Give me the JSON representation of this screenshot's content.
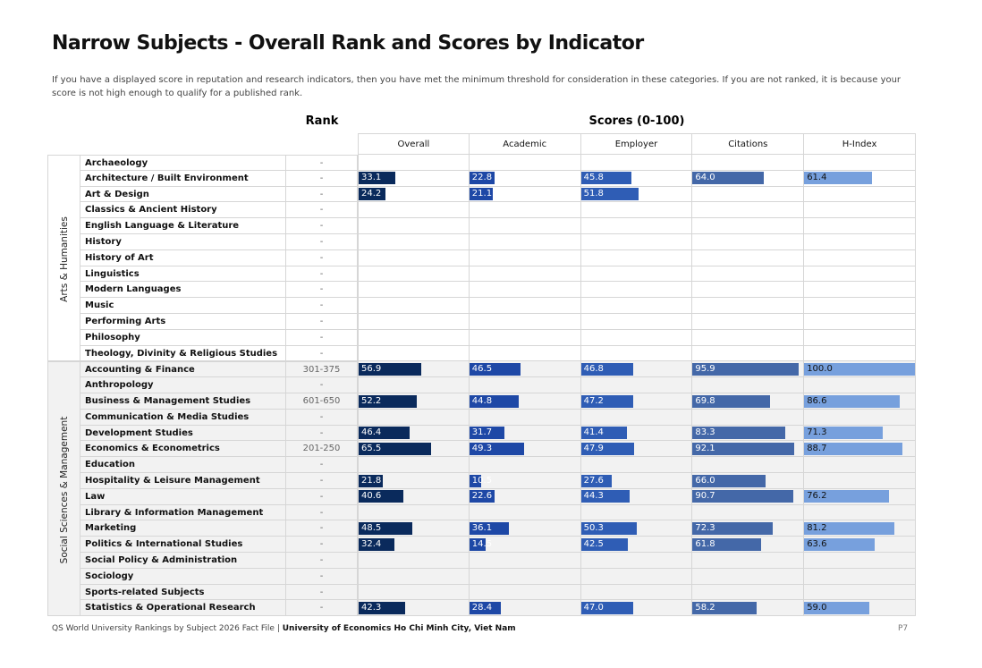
{
  "header": {
    "title": "Narrow Subjects - Overall Rank and Scores by Indicator",
    "subtitle": "If you have a displayed score in reputation and research indicators, then you have met the minimum threshold for consideration in these categories. If you are not ranked, it is because your score is not high enough to qualify for a published rank."
  },
  "table": {
    "rank_header": "Rank",
    "scores_header": "Scores (0-100)",
    "score_range": [
      0,
      100
    ],
    "columns": [
      "Overall",
      "Academic",
      "Employer",
      "Citations",
      "H-Index"
    ],
    "colors": [
      "#0a2a5c",
      "#1e48a6",
      "#2f5db5",
      "#4468a8",
      "#77a0dd"
    ],
    "groups": [
      {
        "name": "Arts & Humanities",
        "rows": [
          {
            "subject": "Archaeology",
            "rank": "-",
            "scores": [
              null,
              null,
              null,
              null,
              null
            ]
          },
          {
            "subject": "Architecture / Built Environment",
            "rank": "-",
            "scores": [
              "33.1",
              "22.8",
              "45.8",
              "64.0",
              "61.4"
            ]
          },
          {
            "subject": "Art & Design",
            "rank": "-",
            "scores": [
              "24.2",
              "21.1",
              "51.8",
              null,
              null
            ]
          },
          {
            "subject": "Classics & Ancient History",
            "rank": "-",
            "scores": [
              null,
              null,
              null,
              null,
              null
            ]
          },
          {
            "subject": "English Language & Literature",
            "rank": "-",
            "scores": [
              null,
              null,
              null,
              null,
              null
            ]
          },
          {
            "subject": "History",
            "rank": "-",
            "scores": [
              null,
              null,
              null,
              null,
              null
            ]
          },
          {
            "subject": "History of Art",
            "rank": "-",
            "scores": [
              null,
              null,
              null,
              null,
              null
            ]
          },
          {
            "subject": "Linguistics",
            "rank": "-",
            "scores": [
              null,
              null,
              null,
              null,
              null
            ]
          },
          {
            "subject": "Modern Languages",
            "rank": "-",
            "scores": [
              null,
              null,
              null,
              null,
              null
            ]
          },
          {
            "subject": "Music",
            "rank": "-",
            "scores": [
              null,
              null,
              null,
              null,
              null
            ]
          },
          {
            "subject": "Performing Arts",
            "rank": "-",
            "scores": [
              null,
              null,
              null,
              null,
              null
            ]
          },
          {
            "subject": "Philosophy",
            "rank": "-",
            "scores": [
              null,
              null,
              null,
              null,
              null
            ]
          },
          {
            "subject": "Theology, Divinity & Religious Studies",
            "rank": "-",
            "scores": [
              null,
              null,
              null,
              null,
              null
            ]
          }
        ]
      },
      {
        "name": "Social Sciences & Management",
        "rows": [
          {
            "subject": "Accounting & Finance",
            "rank": "301-375",
            "scores": [
              "56.9",
              "46.5",
              "46.8",
              "95.9",
              "100.0"
            ]
          },
          {
            "subject": "Anthropology",
            "rank": "-",
            "scores": [
              null,
              null,
              null,
              null,
              null
            ]
          },
          {
            "subject": "Business & Management Studies",
            "rank": "601-650",
            "scores": [
              "52.2",
              "44.8",
              "47.2",
              "69.8",
              "86.6"
            ]
          },
          {
            "subject": "Communication & Media Studies",
            "rank": "-",
            "scores": [
              null,
              null,
              null,
              null,
              null
            ]
          },
          {
            "subject": "Development Studies",
            "rank": "-",
            "scores": [
              "46.4",
              "31.7",
              "41.4",
              "83.3",
              "71.3"
            ]
          },
          {
            "subject": "Economics & Econometrics",
            "rank": "201-250",
            "scores": [
              "65.5",
              "49.3",
              "47.9",
              "92.1",
              "88.7"
            ]
          },
          {
            "subject": "Education",
            "rank": "-",
            "scores": [
              null,
              null,
              null,
              null,
              null
            ]
          },
          {
            "subject": "Hospitality & Leisure Management",
            "rank": "-",
            "scores": [
              "21.8",
              "10.5",
              "27.6",
              "66.0",
              null
            ]
          },
          {
            "subject": "Law",
            "rank": "-",
            "scores": [
              "40.6",
              "22.6",
              "44.3",
              "90.7",
              "76.2"
            ]
          },
          {
            "subject": "Library & Information Management",
            "rank": "-",
            "scores": [
              null,
              null,
              null,
              null,
              null
            ]
          },
          {
            "subject": "Marketing",
            "rank": "-",
            "scores": [
              "48.5",
              "36.1",
              "50.3",
              "72.3",
              "81.2"
            ]
          },
          {
            "subject": "Politics & International Studies",
            "rank": "-",
            "scores": [
              "32.4",
              "14.5",
              "42.5",
              "61.8",
              "63.6"
            ]
          },
          {
            "subject": "Social Policy & Administration",
            "rank": "-",
            "scores": [
              null,
              null,
              null,
              null,
              null
            ]
          },
          {
            "subject": "Sociology",
            "rank": "-",
            "scores": [
              null,
              null,
              null,
              null,
              null
            ]
          },
          {
            "subject": "Sports-related Subjects",
            "rank": "-",
            "scores": [
              null,
              null,
              null,
              null,
              null
            ]
          },
          {
            "subject": "Statistics & Operational Research",
            "rank": "-",
            "scores": [
              "42.3",
              "28.4",
              "47.0",
              "58.2",
              "59.0"
            ]
          }
        ]
      }
    ]
  },
  "footer": {
    "source": "QS World University Rankings by Subject 2026 Fact File |",
    "university": "University of Economics Ho Chi Minh City, Viet Nam",
    "page": "P7"
  }
}
